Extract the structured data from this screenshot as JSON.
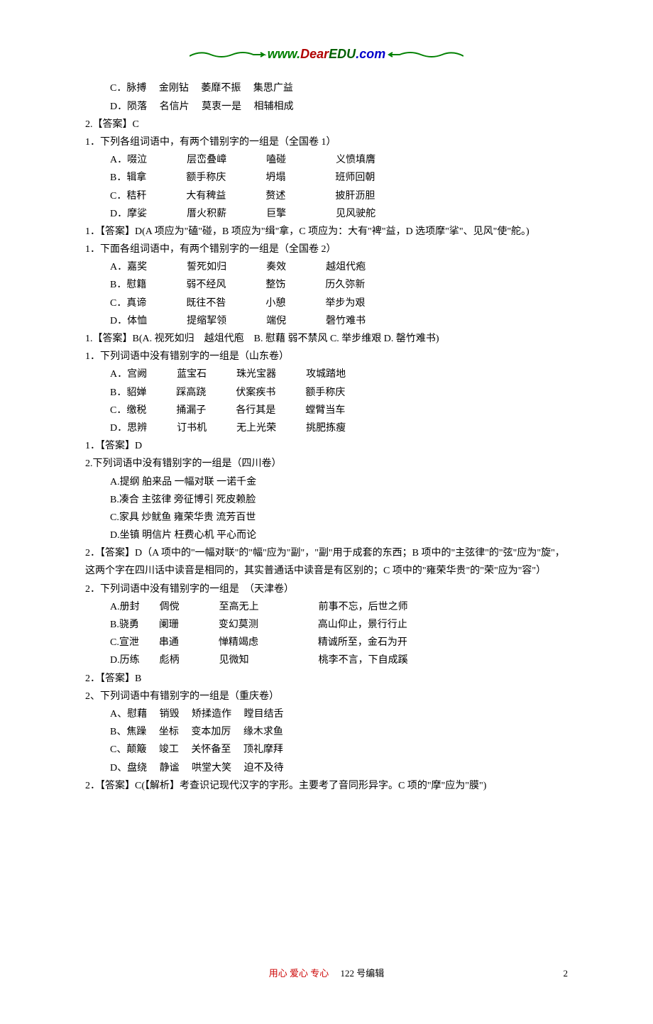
{
  "logo": {
    "www": "www.",
    "dear": "Dear",
    "edu": "EDU",
    "com": ".com"
  },
  "lines": [
    {
      "cls": "indent1",
      "t": "C．脉搏　 金刚钻　 萎靡不振　 集思广益"
    },
    {
      "cls": "indent1",
      "t": "D．陨落　 名信片　 莫衷一是　 相辅相成"
    },
    {
      "cls": "",
      "t": "2.【答案】C"
    },
    {
      "cls": "",
      "t": "1．下列各组词语中，有两个错别字的一组是（全国卷 1）"
    },
    {
      "cls": "opt-row",
      "t": "A．啜泣　　　　层峦叠嶂　　　　嗑碰　　　　　义愤填膺"
    },
    {
      "cls": "opt-row",
      "t": "B．辑拿　　　　额手称庆　　　　坍塌　　　　　班师回朝"
    },
    {
      "cls": "opt-row",
      "t": "C．秸秆　　　　大有稗益　　　　赘述　　　　　披肝沥胆"
    },
    {
      "cls": "opt-row",
      "t": "D．摩娑　　　　厝火积薪　　　　巨擎　　　　　见风驶舵"
    },
    {
      "cls": "",
      "t": "1．【答案】D(A 项应为\"磕\"碰，B 项应为\"缉\"拿，C 项应为：大有\"裨\"益，D 选项摩\"挲\"、见风\"使\"舵。)"
    },
    {
      "cls": "",
      "t": "1．下面各组词语中，有两个错别字的一组是（全国卷 2）"
    },
    {
      "cls": "opt-row",
      "t": "A．嘉奖　　　　誓死如归　　　　奏效　　　　越俎代疱"
    },
    {
      "cls": "opt-row",
      "t": "B．慰籍　　　　弱不经风　　　　整饬　　　　历久弥新"
    },
    {
      "cls": "opt-row",
      "t": "C．真谛　　　　既往不咎　　　　小憩　　　　举步为艰"
    },
    {
      "cls": "opt-row",
      "t": "D．体恤　　　　提缩挈领　　　　端倪　　　　磬竹难书"
    },
    {
      "cls": "",
      "t": "1.【答案】B(A. 视死如归　越俎代庖　B. 慰藉 弱不禁风 C. 举步维艰 D. 罄竹难书)"
    },
    {
      "cls": "",
      "t": "1．下列词语中没有错别字的一组是（山东卷）"
    },
    {
      "cls": "opt-row",
      "t": "A．宫阙　　　蓝宝石　　　珠光宝器　　　攻城踏地"
    },
    {
      "cls": "opt-row",
      "t": "B．貂婵　　　踩高跷　　　伏案疾书　　　额手称庆"
    },
    {
      "cls": "opt-row",
      "t": "C．缴税　　　捅漏子　　　各行其是　　　螳臂当车"
    },
    {
      "cls": "opt-row",
      "t": "D．思辨　　　订书机　　　无上光荣　　　挑肥拣瘦"
    },
    {
      "cls": "",
      "t": "1．【答案】D"
    },
    {
      "cls": "",
      "t": "2.下列词语中没有错别字的一组是（四川卷）"
    },
    {
      "cls": "indent1",
      "t": "A.提纲 舶来品 一幅对联 一诺千金"
    },
    {
      "cls": "indent1",
      "t": "B.凑合 主弦律 旁征博引 死皮赖脸"
    },
    {
      "cls": "indent1",
      "t": "C.家具 炒鱿鱼 雍荣华贵 流芳百世"
    },
    {
      "cls": "indent1",
      "t": "D.坐镇 明信片 枉费心机 平心而论"
    },
    {
      "cls": "",
      "t": "2．【答案】D（A 项中的\"一幅对联\"的\"幅\"应为\"副\"，\"副\"用于成套的东西；B 项中的\"主弦律\"的\"弦\"应为\"旋\"，这两个字在四川话中读音是相同的，其实普通话中读音是有区别的；C 项中的\"雍荣华贵\"的\"荣\"应为\"容\"）"
    },
    {
      "cls": "",
      "t": "2．下列词语中没有错别字的一组是　（天津卷）"
    },
    {
      "cls": "opt-row",
      "t": "A.册封　　倜傥　　　　至高无上　　　　　　前事不忘，后世之师"
    },
    {
      "cls": "opt-row",
      "t": "B.骁勇　　阑珊　　　　变幻莫测　　　　　　高山仰止，景行行止"
    },
    {
      "cls": "opt-row",
      "t": "C.宣泄　　串通　　　　惮精竭虑　　　　　　精诚所至，金石为开"
    },
    {
      "cls": "opt-row",
      "t": "D.历练　　彪柄　　　　见微知　　　　　　　桃李不言，下自成蹊"
    },
    {
      "cls": "",
      "t": "2．【答案】B"
    },
    {
      "cls": "",
      "t": "2、下列词语中有错别字的一组是（重庆卷）"
    },
    {
      "cls": "indent1",
      "t": "A、慰藉　 销毁　 矫揉造作　 瞠目结舌"
    },
    {
      "cls": "indent1",
      "t": "B、焦躁　 坐标　 变本加厉　 缘木求鱼"
    },
    {
      "cls": "indent1",
      "t": "C、颠簸　 竣工　 关怀备至　 顶礼摩拜"
    },
    {
      "cls": "indent1",
      "t": "D、盘绕　 静谧　 哄堂大笑　 迫不及待"
    },
    {
      "cls": "",
      "t": "2．【答案】C(【解析】考查识记现代汉字的字形。主要考了音同形异字。C 项的\"摩\"应为\"膜\")"
    }
  ],
  "footer": {
    "red": "用心 爱心 专心",
    "black": "　 122 号编辑",
    "page": "2"
  }
}
